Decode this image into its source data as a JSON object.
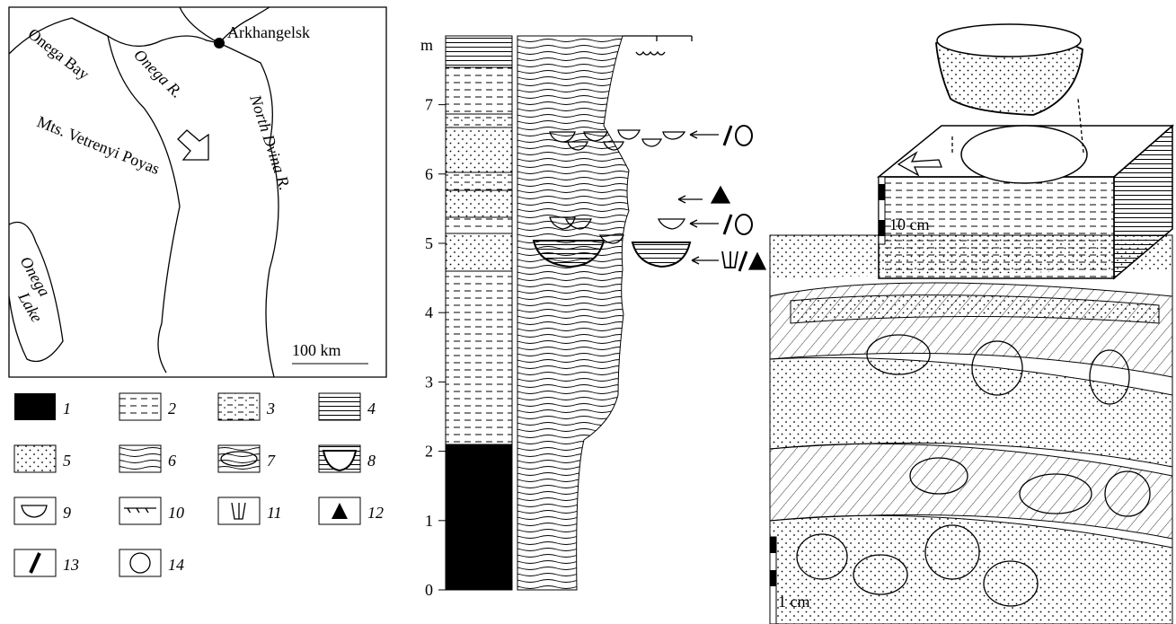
{
  "map": {
    "city": "Arkhangelsk",
    "bay": "Onega Bay",
    "river1": "Onega R.",
    "river2": "North Dvina R.",
    "mountains": "Mts. Vetrenyi Poyas",
    "lake": [
      "Onega",
      "Lake"
    ],
    "scale": "100 km"
  },
  "legend": {
    "items": [
      "1",
      "2",
      "3",
      "4",
      "5",
      "6",
      "7",
      "8",
      "9",
      "10",
      "11",
      "12",
      "13",
      "14"
    ]
  },
  "column": {
    "unit": "m",
    "ticks": [
      0,
      1,
      2,
      3,
      4,
      5,
      6,
      7
    ]
  },
  "block": {
    "scale": "10 cm"
  },
  "outcrop": {
    "scale": "1 cm"
  }
}
